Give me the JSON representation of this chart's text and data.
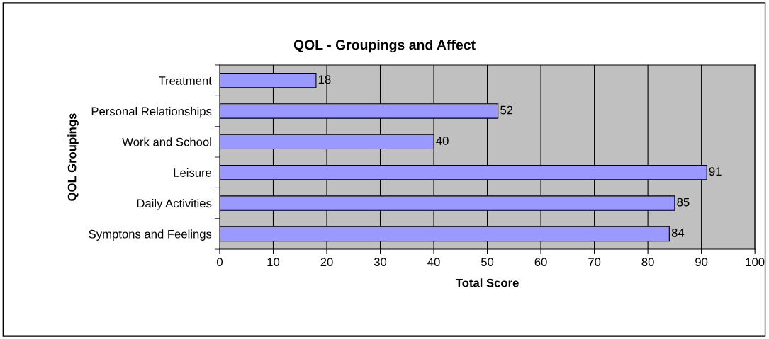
{
  "chart_data": {
    "type": "bar",
    "orientation": "horizontal",
    "title": "QOL - Groupings and Affect",
    "xlabel": "Total Score",
    "ylabel": "QOL Groupings",
    "categories": [
      "Treatment",
      "Personal Relationships",
      "Work and School",
      "Leisure",
      "Daily Activities",
      "Symptons and Feelings"
    ],
    "values": [
      18,
      52,
      40,
      91,
      85,
      84
    ],
    "color": "#9999ff",
    "data_labels": true,
    "xlim": [
      0,
      100
    ],
    "xticks": [
      0,
      10,
      20,
      30,
      40,
      50,
      60,
      70,
      80,
      90,
      100
    ],
    "grid": "x",
    "legend": false
  }
}
